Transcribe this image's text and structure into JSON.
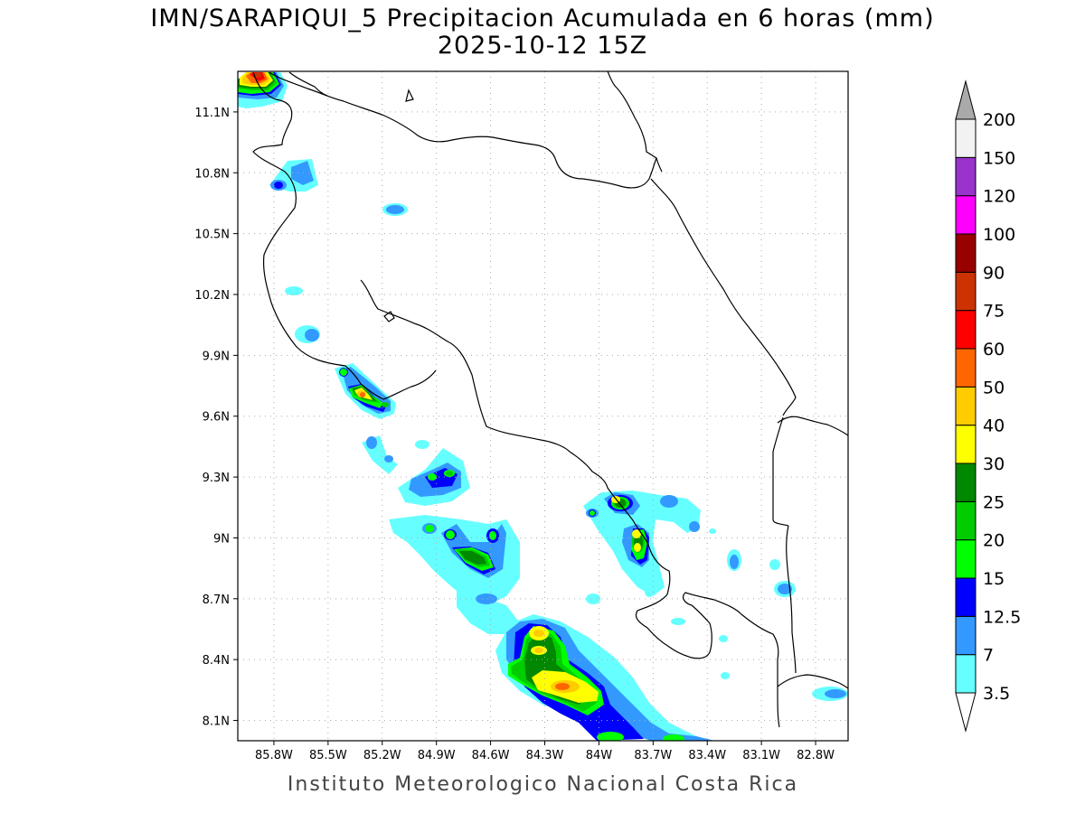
{
  "title": {
    "line1": "IMN/SARAPIQUI_5 Precipitacion Acumulada en 6 horas (mm)",
    "line2": "2025-10-12 15Z"
  },
  "credit": "Instituto Meteorologico Nacional Costa Rica",
  "map": {
    "lon_range": [
      -86.0,
      -82.62
    ],
    "lat_range": [
      8.0,
      11.3
    ],
    "lon_ticks": [
      {
        "v": -85.8,
        "label": "85.8W"
      },
      {
        "v": -85.5,
        "label": "85.5W"
      },
      {
        "v": -85.2,
        "label": "85.2W"
      },
      {
        "v": -84.9,
        "label": "84.9W"
      },
      {
        "v": -84.6,
        "label": "84.6W"
      },
      {
        "v": -84.3,
        "label": "84.3W"
      },
      {
        "v": -84.0,
        "label": "84W"
      },
      {
        "v": -83.7,
        "label": "83.7W"
      },
      {
        "v": -83.4,
        "label": "83.4W"
      },
      {
        "v": -83.1,
        "label": "83.1W"
      },
      {
        "v": -82.8,
        "label": "82.8W"
      }
    ],
    "lat_ticks": [
      {
        "v": 11.1,
        "label": "11.1N"
      },
      {
        "v": 10.8,
        "label": "10.8N"
      },
      {
        "v": 10.5,
        "label": "10.5N"
      },
      {
        "v": 10.2,
        "label": "10.2N"
      },
      {
        "v": 9.9,
        "label": "9.9N"
      },
      {
        "v": 9.6,
        "label": "9.6N"
      },
      {
        "v": 9.3,
        "label": "9.3N"
      },
      {
        "v": 9.0,
        "label": "9N"
      },
      {
        "v": 8.7,
        "label": "8.7N"
      },
      {
        "v": 8.4,
        "label": "8.4N"
      },
      {
        "v": 8.1,
        "label": "8.1N"
      }
    ],
    "grid": "dotted"
  },
  "colorbar": {
    "levels": [
      "3.5",
      "7",
      "12.5",
      "15",
      "20",
      "25",
      "30",
      "40",
      "50",
      "60",
      "75",
      "90",
      "100",
      "120",
      "150",
      "200"
    ],
    "colors": [
      "#ffffff",
      "#66ffff",
      "#3399ff",
      "#0000ff",
      "#00ff00",
      "#00cc00",
      "#008800",
      "#ffff00",
      "#ffcc00",
      "#ff6600",
      "#ff0000",
      "#cc3300",
      "#990000",
      "#ff00ff",
      "#9933cc",
      "#f2f2f2",
      "#aaaaaa"
    ]
  }
}
